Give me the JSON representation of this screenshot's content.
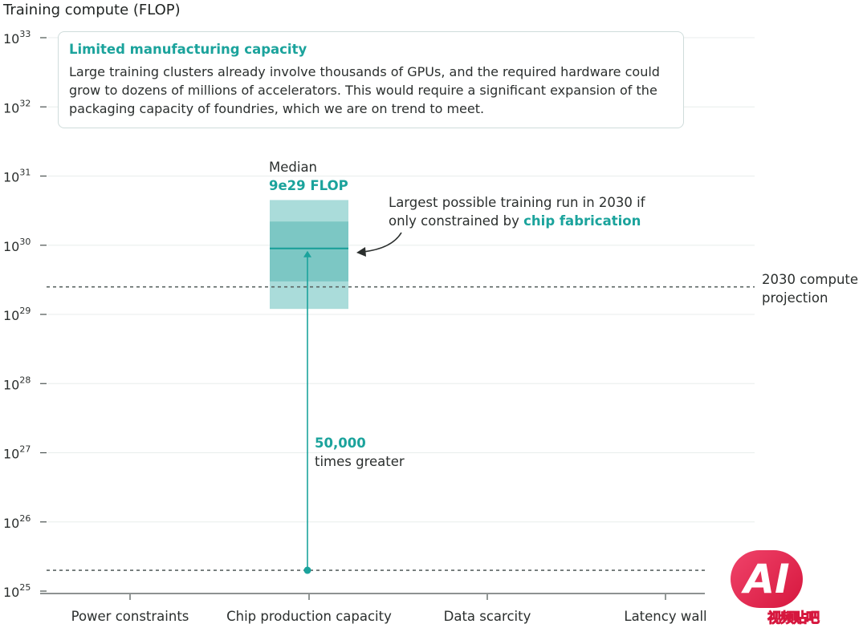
{
  "chart_data": {
    "type": "bar",
    "ylabel": "Training compute (FLOP)",
    "y_scale": "log",
    "ylim": [
      1e+25,
      1e+33
    ],
    "y_ticks": [
      {
        "value": 1e+25,
        "base": "10",
        "exp": "25"
      },
      {
        "value": 1e+26,
        "base": "10",
        "exp": "26"
      },
      {
        "value": 1e+27,
        "base": "10",
        "exp": "27"
      },
      {
        "value": 1e+28,
        "base": "10",
        "exp": "28"
      },
      {
        "value": 1e+29,
        "base": "10",
        "exp": "29"
      },
      {
        "value": 1e+30,
        "base": "10",
        "exp": "30"
      },
      {
        "value": 1e+31,
        "base": "10",
        "exp": "31"
      },
      {
        "value": 1e+32,
        "base": "10",
        "exp": "32"
      },
      {
        "value": 1e+33,
        "base": "10",
        "exp": "33"
      }
    ],
    "categories": [
      "Power constraints",
      "Chip production capacity",
      "Data scarcity",
      "Latency wall"
    ],
    "grid": true,
    "series": [
      {
        "category": "Chip production capacity",
        "median": 9e+29,
        "outer_range": [
          1.2e+29,
          4.5e+30
        ],
        "inner_range": [
          3e+29,
          2.2e+30
        ],
        "median_label": "Median",
        "median_value_label": "9e29 FLOP"
      }
    ],
    "reference_lines": [
      {
        "value": 2.5e+29,
        "label_line1": "2030 compute",
        "label_line2": "projection"
      },
      {
        "value": 2e+25
      }
    ],
    "arrow": {
      "from": 2e+25,
      "to": 9e+29,
      "value_label": "50,000",
      "text": "times greater"
    },
    "callout": {
      "line1": "Largest possible training run in 2030 if",
      "line2_prefix": "only constrained by ",
      "line2_highlight": "chip fabrication"
    },
    "annotation_box": {
      "title": "Limited manufacturing capacity",
      "body": "Large training clusters already involve thousands of GPUs, and the required hardware could grow to dozens of millions of accelerators. This would require a significant expansion of the packaging capacity of foundries, which we are on trend to meet."
    }
  },
  "colors": {
    "accent": "#1ba39c",
    "band_outer": "#aadcda",
    "band_inner": "#7cc7c4",
    "median_line": "#169e97",
    "grid": "#e8edec",
    "reference_line": "#5b6563"
  },
  "watermark": {
    "logo_text": "AI",
    "text": "视频贴吧"
  }
}
